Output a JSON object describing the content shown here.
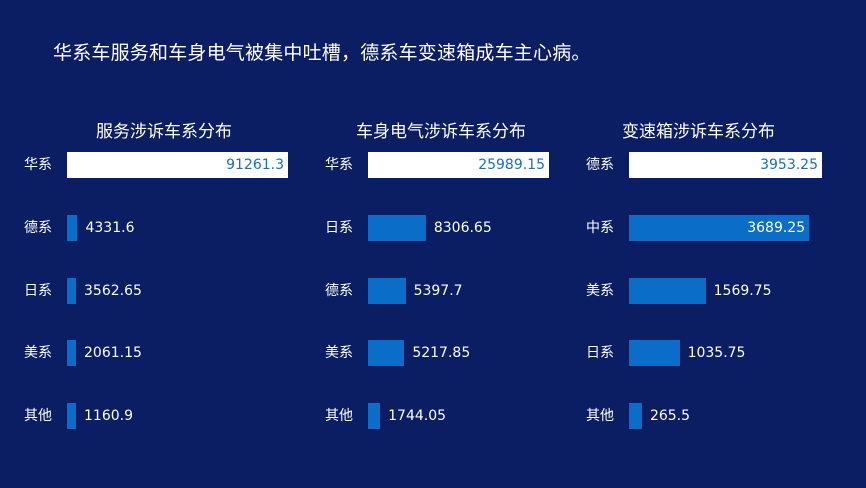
{
  "headline": "华系车服务和车身电气被集中吐槽，德系车变速箱成车主心病。",
  "colors": {
    "background": "#0b1d63",
    "bar_primary": "#ffffff",
    "bar_secondary": "#0a6ec8",
    "label_on_white": "#1a6fb5",
    "label_on_blue": "#ffffff"
  },
  "chart_data": [
    {
      "type": "bar",
      "orientation": "horizontal",
      "title": "服务涉诉车系分布",
      "categories": [
        "华系",
        "德系",
        "日系",
        "美系",
        "其他"
      ],
      "values": [
        91261.3,
        4331.6,
        3562.65,
        2061.15,
        1160.9
      ],
      "value_labels": [
        "91261.3",
        "4331.6",
        "3562.65",
        "2061.15",
        "1160.9"
      ],
      "highlight_index": 0
    },
    {
      "type": "bar",
      "orientation": "horizontal",
      "title": "车身电气涉诉车系分布",
      "categories": [
        "华系",
        "日系",
        "德系",
        "美系",
        "其他"
      ],
      "values": [
        25989.15,
        8306.65,
        5397.7,
        5217.85,
        1744.05
      ],
      "value_labels": [
        "25989.15",
        "8306.65",
        "5397.7",
        "5217.85",
        "1744.05"
      ],
      "highlight_index": 0
    },
    {
      "type": "bar",
      "orientation": "horizontal",
      "title": "变速箱涉诉车系分布",
      "categories": [
        "德系",
        "中系",
        "美系",
        "日系",
        "其他"
      ],
      "values": [
        3953.25,
        3689.25,
        1569.75,
        1035.75,
        265.5
      ],
      "value_labels": [
        "3953.25",
        "3689.25",
        "1569.75",
        "1035.75",
        "265.5"
      ],
      "highlight_index": 0
    }
  ]
}
